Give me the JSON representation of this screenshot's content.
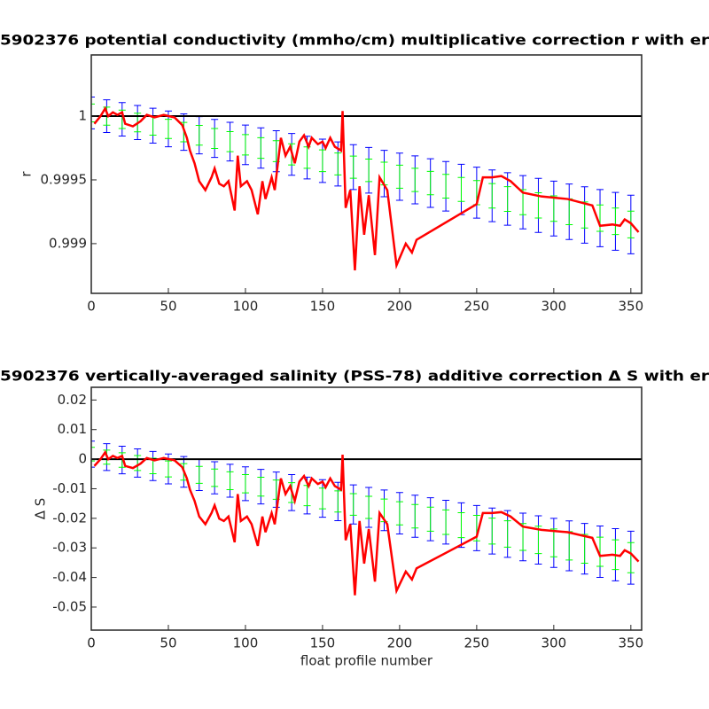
{
  "chart_data": [
    {
      "type": "errorbar",
      "title": "5902376 potential conductivity (mmho/cm) multiplicative correction r with er",
      "y_label": "r",
      "xlim": [
        0,
        357
      ],
      "xticks": [
        0,
        50,
        100,
        150,
        200,
        250,
        300,
        350
      ],
      "ylim": [
        0.99861,
        1.00048
      ],
      "yticks": [
        0.999,
        0.9995,
        1
      ],
      "hline": 1,
      "hline_color": "#000000",
      "series": [
        {
          "color": "#0000ff",
          "x": [
            0,
            10,
            20,
            30,
            40,
            50,
            60,
            70,
            80,
            90,
            100,
            110,
            120,
            130,
            140,
            150,
            160,
            170,
            180,
            190,
            200,
            210,
            220,
            230,
            240,
            250,
            260,
            270,
            280,
            290,
            300,
            310,
            320,
            330,
            340,
            350
          ],
          "values": [
            1.000025,
            1.0,
            0.999975,
            0.99995,
            0.999925,
            0.9999,
            0.999875,
            0.99985,
            0.999825,
            0.9998,
            0.999775,
            0.99975,
            0.999725,
            0.9997,
            0.999675,
            0.99965,
            0.999625,
            0.9996,
            0.999575,
            0.99955,
            0.999525,
            0.9995,
            0.999475,
            0.99945,
            0.999425,
            0.9994,
            0.999375,
            0.99935,
            0.999325,
            0.9993,
            0.999275,
            0.99925,
            0.999225,
            0.9992,
            0.999175,
            0.99915
          ],
          "errors": [
            0.000125,
            0.000128,
            0.000131,
            0.000134,
            0.000137,
            0.00014,
            0.000143,
            0.000146,
            0.000149,
            0.000152,
            0.000155,
            0.000158,
            0.000161,
            0.000164,
            0.000167,
            0.00017,
            0.000173,
            0.000176,
            0.000179,
            0.000182,
            0.000185,
            0.000188,
            0.000191,
            0.000194,
            0.000197,
            0.0002,
            0.000203,
            0.000206,
            0.000209,
            0.000212,
            0.000215,
            0.000218,
            0.000221,
            0.000224,
            0.000227,
            0.00023
          ]
        },
        {
          "color": "#00ff00",
          "x": [
            0,
            10,
            20,
            30,
            40,
            50,
            60,
            70,
            80,
            90,
            100,
            110,
            120,
            130,
            140,
            150,
            160,
            170,
            180,
            190,
            200,
            210,
            220,
            230,
            240,
            250,
            260,
            270,
            280,
            290,
            300,
            310,
            320,
            330,
            340,
            350
          ],
          "values": [
            1.000025,
            1.0,
            0.999975,
            0.99995,
            0.999925,
            0.9999,
            0.999875,
            0.99985,
            0.999825,
            0.9998,
            0.999775,
            0.99975,
            0.999725,
            0.9997,
            0.999675,
            0.99965,
            0.999625,
            0.9996,
            0.999575,
            0.99955,
            0.999525,
            0.9995,
            0.999475,
            0.99945,
            0.999425,
            0.9994,
            0.999375,
            0.99935,
            0.999325,
            0.9993,
            0.999275,
            0.99925,
            0.999225,
            0.9992,
            0.999175,
            0.99915
          ],
          "errors": [
            7e-05,
            7.1e-05,
            7.2e-05,
            7.3e-05,
            7.4e-05,
            7.5e-05,
            7.6e-05,
            7.7e-05,
            7.8e-05,
            7.9e-05,
            8e-05,
            8.1e-05,
            8.2e-05,
            8.3e-05,
            8.4e-05,
            8.5e-05,
            8.6e-05,
            8.7e-05,
            8.8e-05,
            8.9e-05,
            9e-05,
            9.1e-05,
            9.2e-05,
            9.3e-05,
            9.4e-05,
            9.5e-05,
            9.6e-05,
            9.7e-05,
            9.8e-05,
            9.9e-05,
            0.0001,
            0.000101,
            0.000102,
            0.000103,
            0.000104,
            0.000105
          ]
        },
        {
          "color": "#ff0000",
          "x": [
            2,
            6,
            9,
            11,
            14,
            17,
            20,
            22,
            27,
            32,
            36,
            41,
            47,
            54,
            59,
            62,
            64,
            67,
            70,
            74,
            78,
            80,
            83,
            86,
            89,
            93,
            95,
            97,
            101,
            104,
            108,
            111,
            113,
            117,
            119,
            123,
            126,
            129,
            132,
            135,
            138,
            141,
            143,
            147,
            150,
            152,
            155,
            158,
            162,
            163,
            165,
            168,
            171,
            174,
            177,
            180,
            184,
            187,
            192,
            198,
            204,
            208,
            211,
            250,
            254,
            260,
            266,
            272,
            280,
            292,
            309,
            325,
            330,
            338,
            343,
            346,
            350,
            355
          ],
          "values": [
            0.99994,
            1.0,
            1.00006,
            1.0,
            1.00003,
            1.00001,
            1.00003,
            0.99994,
            0.99992,
            0.99996,
            1.00001,
            0.99999,
            1.00001,
            0.99999,
            0.99993,
            0.99983,
            0.99973,
            0.99963,
            0.99949,
            0.99942,
            0.99952,
            0.99959,
            0.99947,
            0.99945,
            0.99949,
            0.99926,
            0.99969,
            0.99945,
            0.99949,
            0.99942,
            0.99923,
            0.99949,
            0.99935,
            0.99952,
            0.99942,
            0.99983,
            0.99969,
            0.99976,
            0.99963,
            0.9998,
            0.99985,
            0.99976,
            0.99983,
            0.99978,
            0.9998,
            0.99975,
            0.99983,
            0.99976,
            0.99973,
            1.00004,
            0.99928,
            0.99942,
            0.99879,
            0.99945,
            0.99907,
            0.99938,
            0.99891,
            0.99952,
            0.99942,
            0.99883,
            0.999,
            0.99893,
            0.99903,
            0.99931,
            0.99952,
            0.99952,
            0.99953,
            0.99949,
            0.9994,
            0.99937,
            0.99935,
            0.9993,
            0.99914,
            0.99915,
            0.99914,
            0.99919,
            0.99916,
            0.99909
          ]
        }
      ]
    },
    {
      "type": "errorbar",
      "title": "5902376 vertically-averaged salinity (PSS-78) additive correction Δ S with er",
      "y_label": "Δ S",
      "x_label": "float profile number",
      "xlim": [
        0,
        357
      ],
      "xticks": [
        0,
        50,
        100,
        150,
        200,
        250,
        300,
        350
      ],
      "ylim": [
        -0.0578,
        0.0243
      ],
      "yticks": [
        -0.05,
        -0.04,
        -0.03,
        -0.02,
        -0.01,
        0,
        0.01,
        0.02
      ],
      "hline": 0,
      "hline_color": "#000000",
      "series": [
        {
          "color": "#0000ff",
          "x": [
            0,
            10,
            20,
            30,
            40,
            50,
            60,
            70,
            80,
            90,
            100,
            110,
            120,
            130,
            140,
            150,
            160,
            170,
            180,
            190,
            200,
            210,
            220,
            230,
            240,
            250,
            260,
            270,
            280,
            290,
            300,
            310,
            320,
            330,
            340,
            350
          ],
          "values": [
            0.0017,
            0.0007,
            -0.0003,
            -0.0013,
            -0.0023,
            -0.0033,
            -0.0043,
            -0.0053,
            -0.0063,
            -0.0073,
            -0.0083,
            -0.0093,
            -0.0103,
            -0.0113,
            -0.0123,
            -0.0133,
            -0.0143,
            -0.0153,
            -0.0163,
            -0.0173,
            -0.0183,
            -0.0193,
            -0.0203,
            -0.0213,
            -0.0223,
            -0.0233,
            -0.0243,
            -0.0253,
            -0.0263,
            -0.0273,
            -0.0283,
            -0.0293,
            -0.0303,
            -0.0313,
            -0.0323,
            -0.0333
          ],
          "errors": [
            0.0044,
            0.00453,
            0.00466,
            0.00479,
            0.00492,
            0.00505,
            0.00518,
            0.00531,
            0.00544,
            0.00557,
            0.0057,
            0.00583,
            0.00596,
            0.00609,
            0.00622,
            0.00635,
            0.00648,
            0.00661,
            0.00674,
            0.00687,
            0.007,
            0.00713,
            0.00726,
            0.00739,
            0.00752,
            0.00765,
            0.00778,
            0.00791,
            0.00804,
            0.00817,
            0.0083,
            0.00843,
            0.00856,
            0.00869,
            0.00882,
            0.00895
          ]
        },
        {
          "color": "#00ff00",
          "x": [
            0,
            10,
            20,
            30,
            40,
            50,
            60,
            70,
            80,
            90,
            100,
            110,
            120,
            130,
            140,
            150,
            160,
            170,
            180,
            190,
            200,
            210,
            220,
            230,
            240,
            250,
            260,
            270,
            280,
            290,
            300,
            310,
            320,
            330,
            340,
            350
          ],
          "values": [
            0.0017,
            0.0007,
            -0.0003,
            -0.0013,
            -0.0023,
            -0.0033,
            -0.0043,
            -0.0053,
            -0.0063,
            -0.0073,
            -0.0083,
            -0.0093,
            -0.0103,
            -0.0113,
            -0.0123,
            -0.0133,
            -0.0143,
            -0.0153,
            -0.0163,
            -0.0173,
            -0.0183,
            -0.0193,
            -0.0203,
            -0.0213,
            -0.0223,
            -0.0233,
            -0.0243,
            -0.0253,
            -0.0263,
            -0.0273,
            -0.0283,
            -0.0293,
            -0.0303,
            -0.0313,
            -0.0323,
            -0.0333
          ],
          "errors": [
            0.0023,
            0.00238,
            0.00246,
            0.00254,
            0.00262,
            0.0027,
            0.00278,
            0.00286,
            0.00294,
            0.00302,
            0.0031,
            0.00318,
            0.00326,
            0.00334,
            0.00342,
            0.0035,
            0.00358,
            0.00366,
            0.00374,
            0.00382,
            0.0039,
            0.00398,
            0.00406,
            0.00414,
            0.00422,
            0.0043,
            0.00438,
            0.00446,
            0.00454,
            0.00462,
            0.0047,
            0.00478,
            0.00486,
            0.00494,
            0.00502,
            0.0051
          ]
        },
        {
          "color": "#ff0000",
          "x": [
            2,
            6,
            9,
            11,
            14,
            17,
            20,
            22,
            27,
            32,
            36,
            41,
            47,
            54,
            59,
            62,
            64,
            67,
            70,
            74,
            78,
            80,
            83,
            86,
            89,
            93,
            95,
            97,
            101,
            104,
            108,
            111,
            113,
            117,
            119,
            123,
            126,
            129,
            132,
            135,
            138,
            141,
            143,
            147,
            150,
            152,
            155,
            158,
            162,
            163,
            165,
            168,
            171,
            174,
            177,
            180,
            184,
            187,
            192,
            198,
            204,
            208,
            211,
            250,
            254,
            260,
            266,
            272,
            280,
            292,
            309,
            325,
            330,
            338,
            343,
            346,
            350,
            355
          ],
          "values": [
            -0.0023,
            0,
            0.0023,
            0,
            0.0011,
            0.0004,
            0.0011,
            -0.0023,
            -0.003,
            -0.0015,
            0.0004,
            -0.0004,
            0.0004,
            -0.0004,
            -0.0027,
            -0.0065,
            -0.0103,
            -0.0141,
            -0.0194,
            -0.022,
            -0.0182,
            -0.0156,
            -0.0201,
            -0.0209,
            -0.0194,
            -0.0281,
            -0.0118,
            -0.0209,
            -0.0194,
            -0.022,
            -0.0293,
            -0.0194,
            -0.0247,
            -0.0182,
            -0.022,
            -0.0065,
            -0.0118,
            -0.0091,
            -0.0141,
            -0.0076,
            -0.0057,
            -0.0091,
            -0.0065,
            -0.0084,
            -0.0076,
            -0.0095,
            -0.0065,
            -0.0091,
            -0.0103,
            0.0015,
            -0.0274,
            -0.022,
            -0.046,
            -0.0209,
            -0.0353,
            -0.0236,
            -0.0414,
            -0.0182,
            -0.022,
            -0.0445,
            -0.038,
            -0.0407,
            -0.0369,
            -0.0262,
            -0.0182,
            -0.0182,
            -0.0179,
            -0.0194,
            -0.0228,
            -0.0239,
            -0.0247,
            -0.0266,
            -0.0327,
            -0.0323,
            -0.0327,
            -0.0308,
            -0.0319,
            -0.0346
          ]
        }
      ]
    }
  ]
}
